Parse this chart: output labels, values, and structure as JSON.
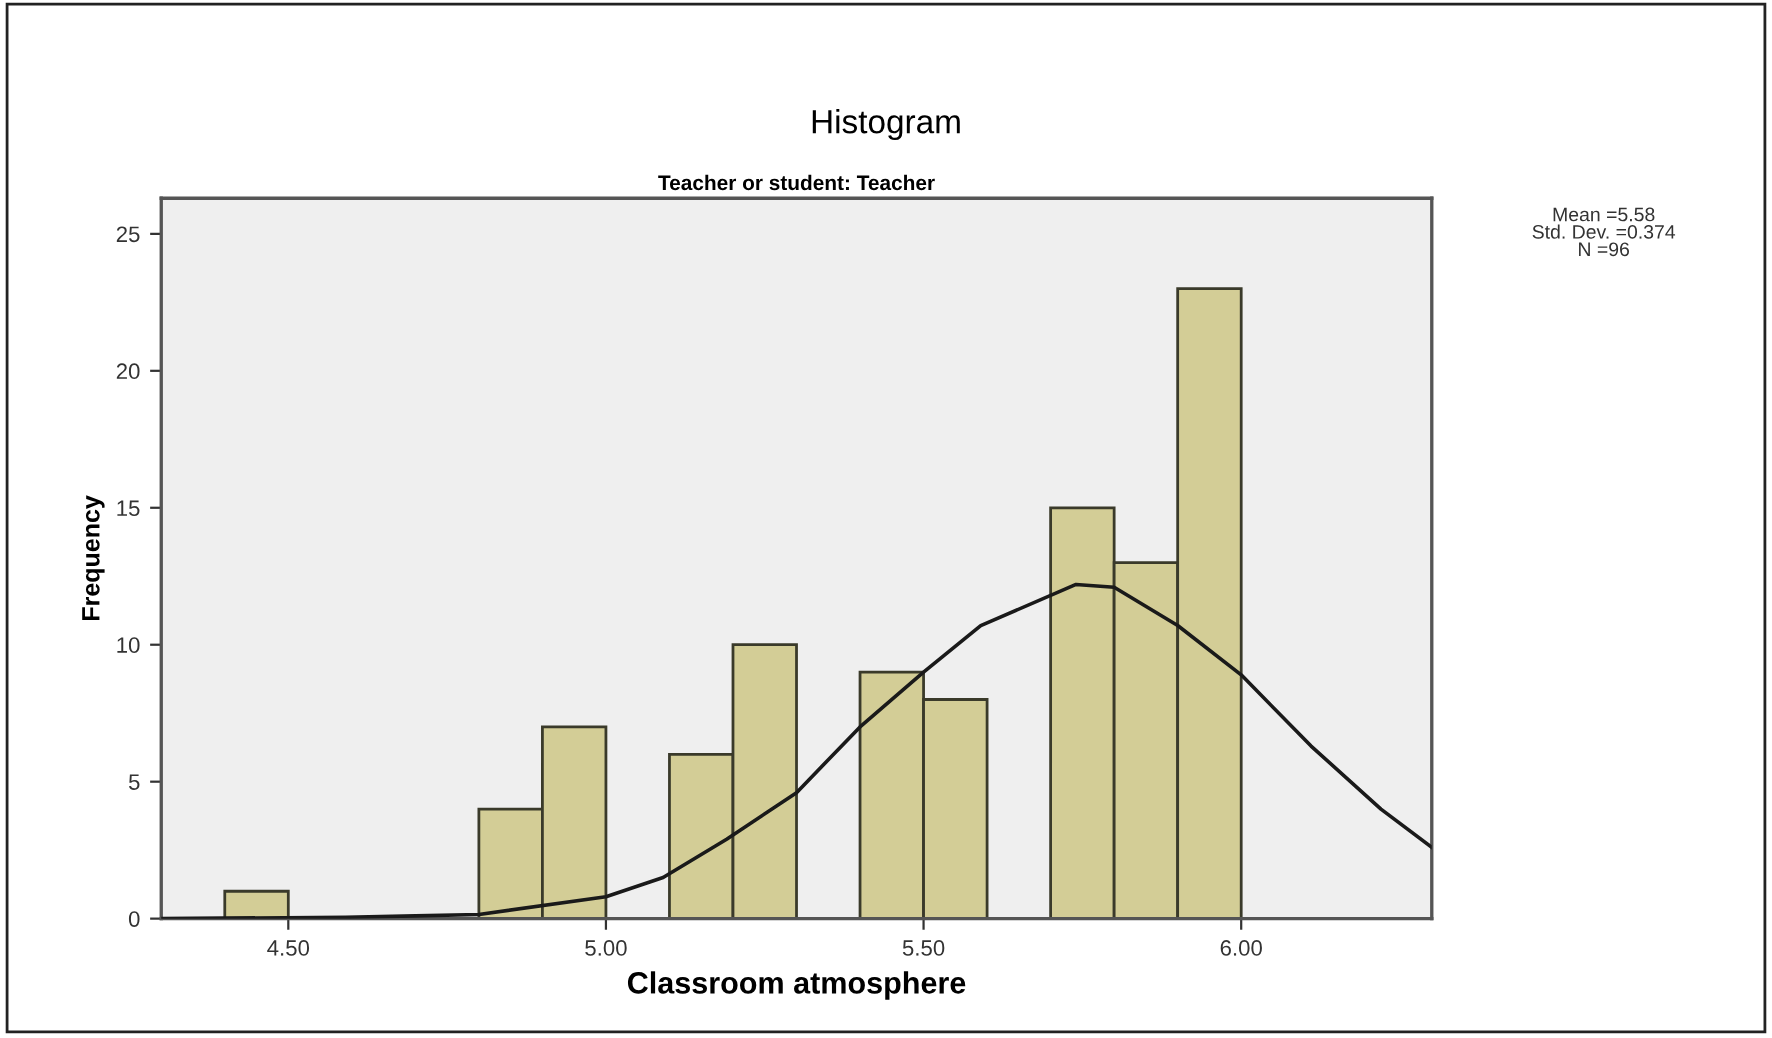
{
  "chart_data": {
    "type": "histogram",
    "title": "Histogram",
    "subtitle": "Teacher or student: Teacher",
    "xlabel": "Classroom atmosphere",
    "ylabel": "Frequency",
    "bins": [
      4.4,
      4.5,
      4.6,
      4.7,
      4.8,
      4.9,
      5.0,
      5.1,
      5.2,
      5.3,
      5.4,
      5.5,
      5.6,
      5.7,
      5.8,
      5.9,
      6.0
    ],
    "values": [
      1,
      0,
      0,
      0,
      4,
      7,
      0,
      6,
      10,
      0,
      9,
      8,
      0,
      15,
      13,
      23
    ],
    "color": "#d3cd96",
    "series": [
      {
        "type": "line",
        "color": "#1a1a1a",
        "x": [
          4.3,
          4.59,
          4.7,
          4.8,
          5.0,
          5.09,
          5.19,
          5.3,
          5.4,
          5.5,
          5.59,
          5.74,
          5.8,
          5.9,
          6.0,
          6.11,
          6.22,
          6.3
        ],
        "values": [
          0,
          0.05,
          0.1,
          0.15,
          0.8,
          1.5,
          2.9,
          4.6,
          7.0,
          9.0,
          10.7,
          12.2,
          12.1,
          10.7,
          8.9,
          6.3,
          4.0,
          2.6
        ]
      }
    ],
    "xlim": [
      4.3,
      6.3
    ],
    "ylim": [
      0,
      26.3
    ],
    "xticks": [
      {
        "value": 4.5,
        "label": "4.50"
      },
      {
        "value": 5.0,
        "label": "5.00"
      },
      {
        "value": 5.5,
        "label": "5.50"
      },
      {
        "value": 6.0,
        "label": "6.00"
      }
    ],
    "yticks": [
      0,
      5,
      10,
      15,
      20,
      25
    ],
    "annotations": [
      "Mean =5.58\nStd. Dev. =0.374\nN =96"
    ],
    "grid": false,
    "legend": false
  }
}
